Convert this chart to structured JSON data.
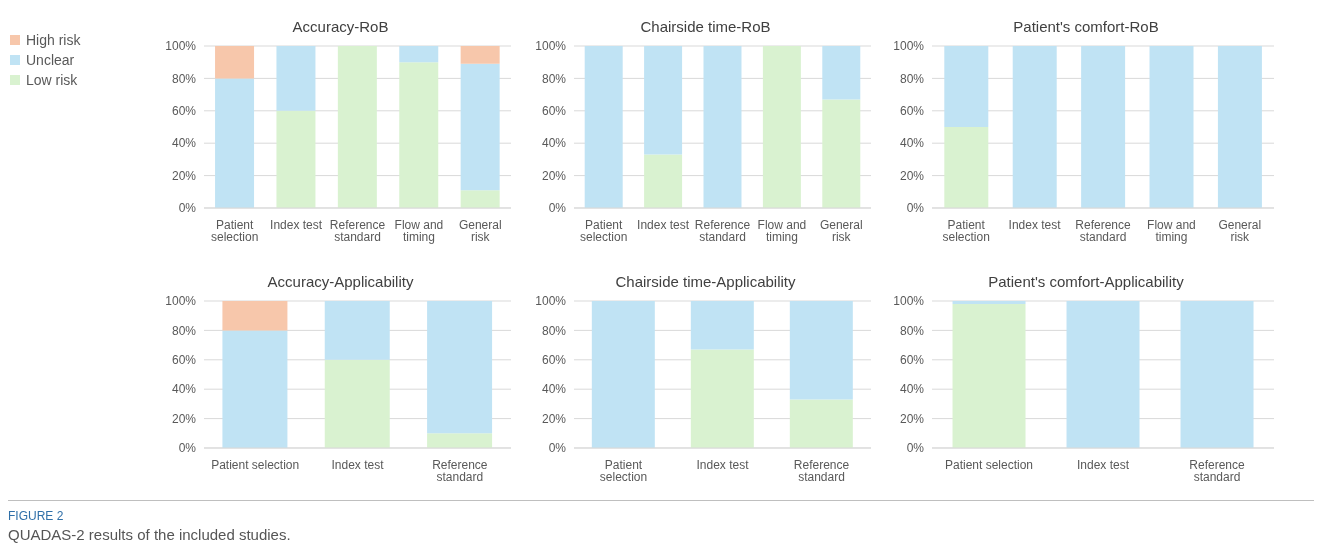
{
  "chart_data": [
    {
      "type": "bar",
      "title": "Accuracy-RoB",
      "categories": [
        "Patient selection",
        "Index test",
        "Reference standard",
        "Flow and timing",
        "General risk"
      ],
      "stacked": true,
      "ylim": [
        0,
        100
      ],
      "yticks": [
        {
          "value": 0,
          "label": "0%"
        },
        {
          "value": 20,
          "label": "20%"
        },
        {
          "value": 40,
          "label": "40%"
        },
        {
          "value": 60,
          "label": "60%"
        },
        {
          "value": 80,
          "label": "80%"
        },
        {
          "value": 100,
          "label": "100%"
        }
      ],
      "grid": "y",
      "legend": "top left",
      "series": [
        {
          "name": "Low risk",
          "color": "#d9f2d0",
          "values": [
            0,
            60,
            100,
            90,
            11
          ]
        },
        {
          "name": "Unclear",
          "color": "#c0e3f4",
          "values": [
            80,
            40,
            0,
            10,
            78
          ]
        },
        {
          "name": "High risk",
          "color": "#f7c7ab",
          "values": [
            20,
            0,
            0,
            0,
            11
          ]
        }
      ]
    },
    {
      "type": "bar",
      "title": "Chairside time-RoB",
      "categories": [
        "Patient selection",
        "Index test",
        "Reference standard",
        "Flow and timing",
        "General risk"
      ],
      "stacked": true,
      "ylim": [
        0,
        100
      ],
      "yticks": [
        {
          "value": 0,
          "label": "0%"
        },
        {
          "value": 20,
          "label": "20%"
        },
        {
          "value": 40,
          "label": "40%"
        },
        {
          "value": 60,
          "label": "60%"
        },
        {
          "value": 80,
          "label": "80%"
        },
        {
          "value": 100,
          "label": "100%"
        }
      ],
      "grid": "y",
      "series": [
        {
          "color": "#d9f2d0",
          "values": [
            0,
            33,
            0,
            100,
            67
          ]
        },
        {
          "color": "#c0e3f4",
          "values": [
            100,
            67,
            100,
            0,
            33
          ]
        }
      ]
    },
    {
      "type": "bar",
      "title": "Patient's comfort-RoB",
      "categories": [
        "Patient selection",
        "Index test",
        "Reference standard",
        "Flow and timing",
        "General risk"
      ],
      "stacked": true,
      "ylim": [
        0,
        100
      ],
      "yticks": [
        {
          "value": 0,
          "label": "0%"
        },
        {
          "value": 20,
          "label": "20%"
        },
        {
          "value": 40,
          "label": "40%"
        },
        {
          "value": 60,
          "label": "60%"
        },
        {
          "value": 80,
          "label": "80%"
        },
        {
          "value": 100,
          "label": "100%"
        }
      ],
      "grid": "y",
      "series": [
        {
          "color": "#d9f2d0",
          "values": [
            50,
            0,
            0,
            0,
            0
          ]
        },
        {
          "color": "#c0e3f4",
          "values": [
            50,
            100,
            100,
            100,
            100
          ]
        }
      ]
    },
    {
      "type": "bar",
      "title": "Accuracy-Applicability",
      "categories": [
        "Patient selection",
        "Index test",
        "Reference standard"
      ],
      "stacked": true,
      "ylim": [
        0,
        100
      ],
      "yticks": [
        {
          "value": 0,
          "label": "0%"
        },
        {
          "value": 20,
          "label": "20%"
        },
        {
          "value": 40,
          "label": "40%"
        },
        {
          "value": 60,
          "label": "60%"
        },
        {
          "value": 80,
          "label": "80%"
        },
        {
          "value": 100,
          "label": "100%"
        }
      ],
      "grid": "y",
      "annotations": [
        "FIGURE 2",
        "QUADAS-2 results of the included studies."
      ],
      "series": [
        {
          "color": "#d9f2d0",
          "values": [
            0,
            60,
            10
          ]
        },
        {
          "color": "#c0e3f4",
          "values": [
            80,
            40,
            90
          ]
        },
        {
          "color": "#f7c7ab",
          "values": [
            20,
            0,
            0
          ]
        }
      ]
    },
    {
      "type": "bar",
      "title": "Chairside time-Applicability",
      "categories": [
        "Patient selection",
        "Index test",
        "Reference standard"
      ],
      "stacked": true,
      "ylim": [
        0,
        100
      ],
      "yticks": [
        {
          "value": 0,
          "label": "0%"
        },
        {
          "value": 20,
          "label": "20%"
        },
        {
          "value": 40,
          "label": "40%"
        },
        {
          "value": 60,
          "label": "60%"
        },
        {
          "value": 80,
          "label": "80%"
        },
        {
          "value": 100,
          "label": "100%"
        }
      ],
      "grid": "y",
      "series": [
        {
          "color": "#d9f2d0",
          "values": [
            0,
            67,
            33
          ]
        },
        {
          "color": "#c0e3f4",
          "values": [
            100,
            33,
            67
          ]
        }
      ]
    },
    {
      "type": "bar",
      "title": "Patient's comfort-Applicability",
      "categories": [
        "Patient selection",
        "Index test",
        "Reference standard"
      ],
      "stacked": true,
      "ylim": [
        0,
        100
      ],
      "yticks": [
        {
          "value": 0,
          "label": "0%"
        },
        {
          "value": 20,
          "label": "20%"
        },
        {
          "value": 40,
          "label": "40%"
        },
        {
          "value": 60,
          "label": "60%"
        },
        {
          "value": 80,
          "label": "80%"
        },
        {
          "value": 100,
          "label": "100%"
        }
      ],
      "grid": "y",
      "series": [
        {
          "color": "#d9f2d0",
          "values": [
            98,
            0,
            0
          ]
        },
        {
          "color": "#c0e3f4",
          "values": [
            2,
            100,
            100
          ]
        }
      ]
    }
  ]
}
